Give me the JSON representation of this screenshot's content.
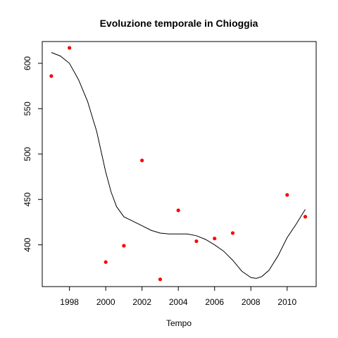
{
  "chart_data": {
    "type": "scatter",
    "title": "Evoluzione temporale in Chioggia",
    "xlabel": "Tempo",
    "ylabel": "",
    "xlim": [
      1996.5,
      2011.6
    ],
    "ylim": [
      354,
      624
    ],
    "x_ticks": [
      1998,
      2000,
      2002,
      2004,
      2006,
      2008,
      2010
    ],
    "y_ticks": [
      400,
      450,
      500,
      550,
      600
    ],
    "grid": false,
    "legend": "none",
    "point_color": "#ff0000",
    "line_color": "#000000",
    "points": [
      {
        "x": 1997,
        "y": 586
      },
      {
        "x": 1998,
        "y": 617
      },
      {
        "x": 2000,
        "y": 381
      },
      {
        "x": 2001,
        "y": 399
      },
      {
        "x": 2002,
        "y": 493
      },
      {
        "x": 2003,
        "y": 362
      },
      {
        "x": 2004,
        "y": 438
      },
      {
        "x": 2005,
        "y": 404
      },
      {
        "x": 2006,
        "y": 407
      },
      {
        "x": 2007,
        "y": 413
      },
      {
        "x": 2010,
        "y": 455
      },
      {
        "x": 2011,
        "y": 431
      }
    ],
    "smooth_curve": [
      {
        "x": 1997.0,
        "y": 612
      },
      {
        "x": 1997.5,
        "y": 608
      },
      {
        "x": 1998.0,
        "y": 600
      },
      {
        "x": 1998.5,
        "y": 582
      },
      {
        "x": 1999.0,
        "y": 558
      },
      {
        "x": 1999.5,
        "y": 525
      },
      {
        "x": 2000.0,
        "y": 480
      },
      {
        "x": 2000.3,
        "y": 458
      },
      {
        "x": 2000.6,
        "y": 442
      },
      {
        "x": 2001.0,
        "y": 431
      },
      {
        "x": 2001.5,
        "y": 426
      },
      {
        "x": 2002.0,
        "y": 421
      },
      {
        "x": 2002.5,
        "y": 416
      },
      {
        "x": 2003.0,
        "y": 413
      },
      {
        "x": 2003.5,
        "y": 412
      },
      {
        "x": 2004.0,
        "y": 412
      },
      {
        "x": 2004.5,
        "y": 412
      },
      {
        "x": 2005.0,
        "y": 410
      },
      {
        "x": 2005.5,
        "y": 406
      },
      {
        "x": 2006.0,
        "y": 400
      },
      {
        "x": 2006.5,
        "y": 393
      },
      {
        "x": 2007.0,
        "y": 383
      },
      {
        "x": 2007.5,
        "y": 371
      },
      {
        "x": 2008.0,
        "y": 364
      },
      {
        "x": 2008.3,
        "y": 363
      },
      {
        "x": 2008.6,
        "y": 365
      },
      {
        "x": 2009.0,
        "y": 372
      },
      {
        "x": 2009.5,
        "y": 388
      },
      {
        "x": 2010.0,
        "y": 408
      },
      {
        "x": 2010.5,
        "y": 423
      },
      {
        "x": 2011.0,
        "y": 439
      }
    ]
  }
}
